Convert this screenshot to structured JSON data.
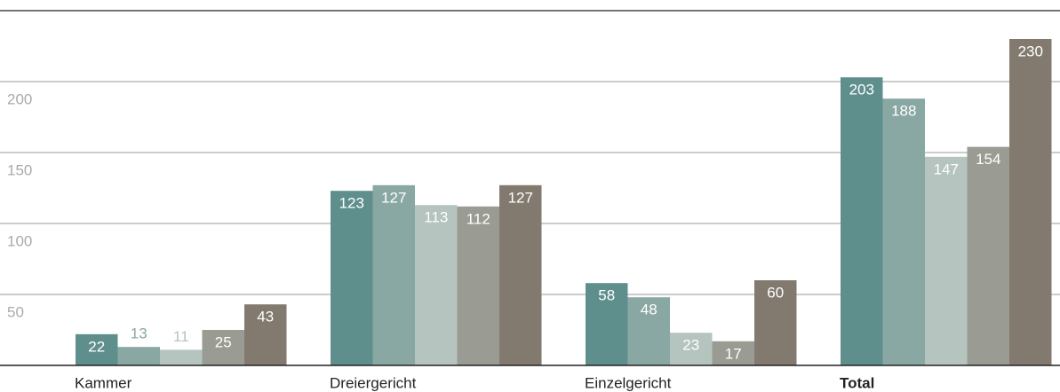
{
  "chart_data": {
    "type": "bar",
    "categories": [
      "Kammer",
      "Dreiergericht",
      "Einzelgericht",
      "Total"
    ],
    "series": [
      {
        "color": "#5f8f8c",
        "values": [
          22,
          123,
          58,
          203
        ]
      },
      {
        "color": "#8aa8a3",
        "values": [
          13,
          127,
          48,
          188
        ]
      },
      {
        "color": "#b5c4bf",
        "values": [
          11,
          113,
          23,
          147
        ]
      },
      {
        "color": "#9a9b92",
        "values": [
          25,
          112,
          17,
          154
        ]
      },
      {
        "color": "#837a6f",
        "values": [
          43,
          127,
          60,
          230
        ]
      }
    ],
    "ylim": [
      0,
      250
    ],
    "yticks": [
      50,
      100,
      150,
      200
    ],
    "grid": true
  }
}
